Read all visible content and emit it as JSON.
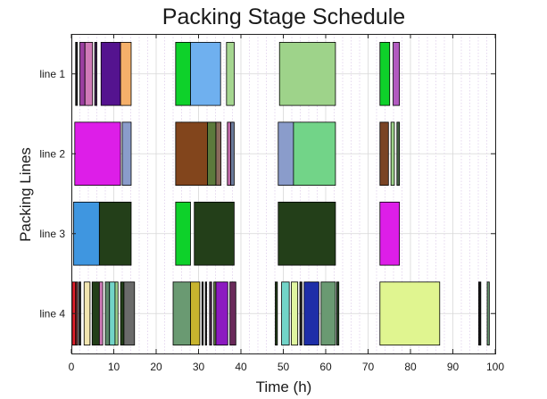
{
  "chart_data": {
    "type": "gantt",
    "title": "Packing Stage Schedule",
    "xlabel": "Time (h)",
    "ylabel": "Packing Lines",
    "xlim": [
      0,
      100
    ],
    "xticks": [
      "0",
      "10",
      "20",
      "30",
      "40",
      "50",
      "60",
      "70",
      "80",
      "90",
      "100"
    ],
    "grid": true,
    "lines": [
      {
        "name": "line 1",
        "tasks": [
          {
            "start": 1.0,
            "end": 1.4,
            "color": "#222222"
          },
          {
            "start": 2.0,
            "end": 3.2,
            "color": "#9b3fa0"
          },
          {
            "start": 3.2,
            "end": 5.0,
            "color": "#d07ab8"
          },
          {
            "start": 5.5,
            "end": 6.0,
            "color": "#3d1f4d"
          },
          {
            "start": 7.0,
            "end": 11.6,
            "color": "#54138f"
          },
          {
            "start": 11.6,
            "end": 14.1,
            "color": "#f5b06a"
          },
          {
            "start": 24.6,
            "end": 28.1,
            "color": "#0ed12a"
          },
          {
            "start": 28.1,
            "end": 35.2,
            "color": "#6fb0ef"
          },
          {
            "start": 36.6,
            "end": 38.4,
            "color": "#a5d690"
          },
          {
            "start": 49.1,
            "end": 62.3,
            "color": "#9ed38a"
          },
          {
            "start": 72.8,
            "end": 75.1,
            "color": "#0ed12a"
          },
          {
            "start": 75.9,
            "end": 77.4,
            "color": "#b25ac0"
          }
        ]
      },
      {
        "name": "line 2",
        "tasks": [
          {
            "start": 0.8,
            "end": 11.6,
            "color": "#dd1ee8"
          },
          {
            "start": 12.0,
            "end": 14.1,
            "color": "#8a9ccb"
          },
          {
            "start": 24.6,
            "end": 32.1,
            "color": "#82451c"
          },
          {
            "start": 32.1,
            "end": 34.1,
            "color": "#5c7a3c"
          },
          {
            "start": 34.1,
            "end": 35.3,
            "color": "#8a6a5c"
          },
          {
            "start": 36.8,
            "end": 37.6,
            "color": "#c06aa8"
          },
          {
            "start": 37.6,
            "end": 38.4,
            "color": "#6a7a9a"
          },
          {
            "start": 48.8,
            "end": 52.4,
            "color": "#8a9ccb"
          },
          {
            "start": 52.4,
            "end": 62.3,
            "color": "#72d488"
          },
          {
            "start": 72.8,
            "end": 74.8,
            "color": "#7a4424"
          },
          {
            "start": 75.4,
            "end": 76.2,
            "color": "#9ed38a"
          },
          {
            "start": 76.8,
            "end": 77.4,
            "color": "#4a6a4a"
          }
        ]
      },
      {
        "name": "line 3",
        "tasks": [
          {
            "start": 0.5,
            "end": 6.6,
            "color": "#3f96e0"
          },
          {
            "start": 6.6,
            "end": 14.1,
            "color": "#233f19"
          },
          {
            "start": 24.6,
            "end": 28.1,
            "color": "#0ed12a"
          },
          {
            "start": 29.0,
            "end": 38.4,
            "color": "#233f19"
          },
          {
            "start": 48.8,
            "end": 62.3,
            "color": "#233f19"
          },
          {
            "start": 72.8,
            "end": 77.4,
            "color": "#dd1ee8"
          }
        ]
      },
      {
        "name": "line 4",
        "tasks": [
          {
            "start": 0.2,
            "end": 1.0,
            "color": "#e01e2a"
          },
          {
            "start": 1.0,
            "end": 1.5,
            "color": "#6a2a2a"
          },
          {
            "start": 1.8,
            "end": 2.2,
            "color": "#1a1a1a"
          },
          {
            "start": 3.0,
            "end": 4.4,
            "color": "#f2e6b0"
          },
          {
            "start": 4.9,
            "end": 6.6,
            "color": "#233f19"
          },
          {
            "start": 6.6,
            "end": 7.4,
            "color": "#d07ab8"
          },
          {
            "start": 8.0,
            "end": 9.0,
            "color": "#5c8a6a"
          },
          {
            "start": 9.0,
            "end": 10.3,
            "color": "#72d4c8"
          },
          {
            "start": 10.3,
            "end": 11.0,
            "color": "#9ed38a"
          },
          {
            "start": 11.6,
            "end": 12.4,
            "color": "#233f19"
          },
          {
            "start": 12.4,
            "end": 14.9,
            "color": "#6a6a6a"
          },
          {
            "start": 24.0,
            "end": 28.1,
            "color": "#6a9a72"
          },
          {
            "start": 28.1,
            "end": 30.3,
            "color": "#c8b42e"
          },
          {
            "start": 30.8,
            "end": 31.1,
            "color": "#222222"
          },
          {
            "start": 31.6,
            "end": 31.9,
            "color": "#222222"
          },
          {
            "start": 32.6,
            "end": 33.1,
            "color": "#4a2a4a"
          },
          {
            "start": 33.6,
            "end": 34.1,
            "color": "#5c7a3c"
          },
          {
            "start": 34.1,
            "end": 36.9,
            "color": "#8c1ac0"
          },
          {
            "start": 37.4,
            "end": 38.8,
            "color": "#6a2a5a"
          },
          {
            "start": 48.1,
            "end": 48.6,
            "color": "#233f19"
          },
          {
            "start": 49.6,
            "end": 51.4,
            "color": "#72d4c8"
          },
          {
            "start": 51.9,
            "end": 53.4,
            "color": "#e0f5a0"
          },
          {
            "start": 53.9,
            "end": 54.4,
            "color": "#222222"
          },
          {
            "start": 54.9,
            "end": 58.4,
            "color": "#1e2ea8"
          },
          {
            "start": 58.9,
            "end": 62.3,
            "color": "#6a9a72"
          },
          {
            "start": 62.6,
            "end": 63.1,
            "color": "#2a4a2a"
          },
          {
            "start": 72.8,
            "end": 86.9,
            "color": "#e0f590"
          },
          {
            "start": 96.1,
            "end": 96.6,
            "color": "#111111"
          },
          {
            "start": 98.1,
            "end": 98.6,
            "color": "#6a9a72"
          }
        ]
      }
    ]
  }
}
